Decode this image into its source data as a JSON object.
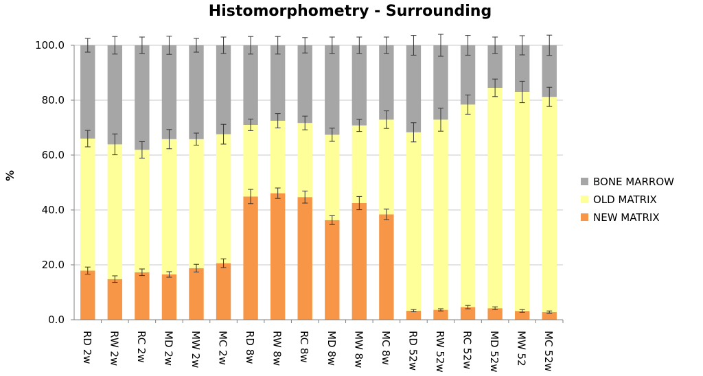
{
  "chart_data": {
    "type": "bar",
    "stacked": true,
    "title": "Histomorphometry - Surrounding",
    "ylabel": "%",
    "xlabel": "",
    "ylim": [
      0,
      100
    ],
    "yticks": [
      "0.0",
      "20.0",
      "40.0",
      "60.0",
      "80.0",
      "100.0"
    ],
    "grid": true,
    "legend_position": "right",
    "categories": [
      "RD 2w",
      "RW 2w",
      "RC 2w",
      "MD 2w",
      "MW 2w",
      "MC 2w",
      "RD 8w",
      "RW 8w",
      "RC 8w",
      "MD 8w",
      "MW 8w",
      "MC 8w",
      "RD 52w",
      "RW 52w",
      "RC 52w",
      "MD 52w",
      "MW 52",
      "MC 52w"
    ],
    "series": [
      {
        "name": "NEW MATRIX",
        "color": "#f79646",
        "values": [
          17.9,
          14.8,
          17.3,
          16.5,
          18.8,
          20.6,
          44.9,
          46.1,
          44.7,
          36.3,
          42.5,
          38.4,
          3.3,
          3.6,
          4.6,
          4.2,
          3.2,
          2.8
        ],
        "errors": [
          1.3,
          1.2,
          1.2,
          1.0,
          1.4,
          1.6,
          2.6,
          1.9,
          2.2,
          1.6,
          2.4,
          1.9,
          0.4,
          0.4,
          0.6,
          0.5,
          0.5,
          0.4
        ]
      },
      {
        "name": "OLD MATRIX",
        "color": "#ffff99",
        "values": [
          48.1,
          49.1,
          44.6,
          49.3,
          47.0,
          47.0,
          26.1,
          26.4,
          27.0,
          31.1,
          28.3,
          34.5,
          65.0,
          69.3,
          73.8,
          80.3,
          79.8,
          78.4
        ],
        "errors": [
          3.0,
          3.8,
          3.0,
          3.5,
          2.2,
          3.6,
          2.1,
          2.6,
          2.5,
          2.4,
          2.2,
          3.2,
          3.5,
          4.2,
          3.5,
          3.2,
          3.9,
          3.5
        ]
      },
      {
        "name": "BONE MARROW",
        "color": "#a6a6a6",
        "values": [
          34.0,
          36.1,
          38.1,
          34.2,
          34.2,
          32.4,
          29.0,
          27.5,
          28.3,
          32.6,
          29.2,
          27.1,
          31.7,
          27.1,
          21.6,
          15.5,
          17.0,
          18.8
        ],
        "errors": [
          2.5,
          3.2,
          3.0,
          3.3,
          2.5,
          3.0,
          3.2,
          3.2,
          2.8,
          3.0,
          3.0,
          3.0,
          3.6,
          4.0,
          3.6,
          3.0,
          3.5,
          3.7
        ]
      }
    ]
  }
}
